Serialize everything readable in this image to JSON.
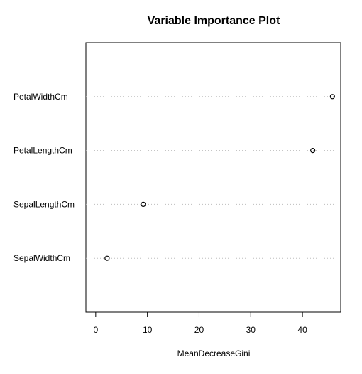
{
  "chart_data": {
    "type": "scatter",
    "title": "Variable Importance Plot",
    "xlabel": "MeanDecreaseGini",
    "ylabel": "",
    "categories": [
      "PetalWidthCm",
      "PetalLengthCm",
      "SepalLengthCm",
      "SepalWidthCm"
    ],
    "values": [
      45.8,
      42.0,
      9.2,
      2.2
    ],
    "xlim": [
      -1.9,
      47.4
    ],
    "xticks": [
      0,
      10,
      20,
      30,
      40
    ],
    "grid": "horizontal dotted guide lines",
    "legend": "none"
  }
}
